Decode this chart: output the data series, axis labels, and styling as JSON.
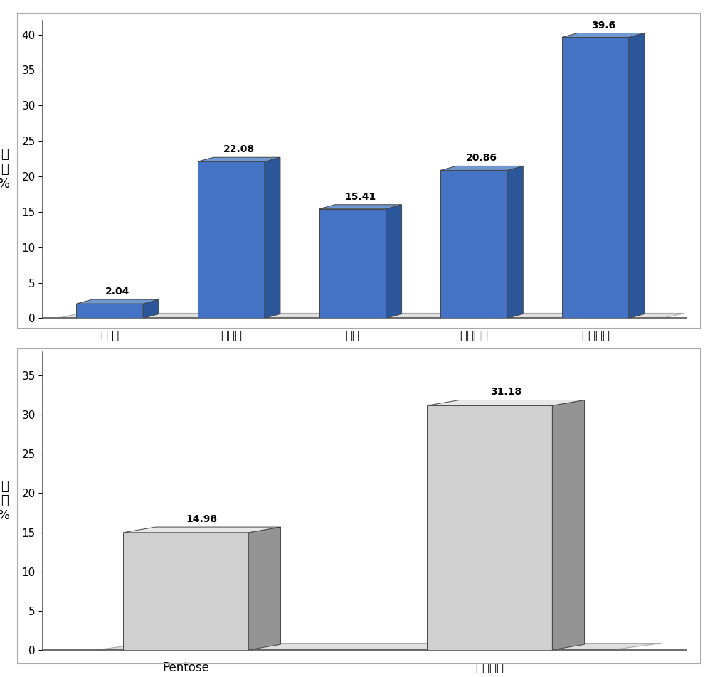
{
  "chart1": {
    "categories": [
      "지 방",
      "단백질",
      "회분",
      "식이섬유",
      "탄수화물"
    ],
    "values": [
      2.04,
      22.08,
      15.41,
      20.86,
      39.6
    ],
    "bar_color_front": "#4472C4",
    "bar_color_side": "#2B569A",
    "bar_color_top": "#7099D4",
    "ylim": [
      0,
      42
    ],
    "yticks": [
      0,
      5,
      10,
      15,
      20,
      25,
      30,
      35,
      40
    ],
    "ylabel_lines": [
      "함",
      "량",
      "%"
    ],
    "value_labels": [
      "2.04",
      "22.08",
      "15.41",
      "20.86",
      "39.6"
    ]
  },
  "chart2": {
    "categories": [
      "Pentose",
      "총당함량"
    ],
    "values": [
      14.98,
      31.18
    ],
    "bar_color_front": "#D0D0D0",
    "bar_color_side": "#949494",
    "bar_color_top": "#E8E8E8",
    "ylim": [
      0,
      38
    ],
    "yticks": [
      0,
      5,
      10,
      15,
      20,
      25,
      30,
      35
    ],
    "ylabel_lines": [
      "함",
      "량",
      "%"
    ],
    "value_labels": [
      "14.98",
      "31.18"
    ]
  },
  "background_color": "#FFFFFF",
  "panel_facecolor": "#FFFFFF",
  "floor_color": "#E0E0E0",
  "floor_edge": "#AAAAAA"
}
